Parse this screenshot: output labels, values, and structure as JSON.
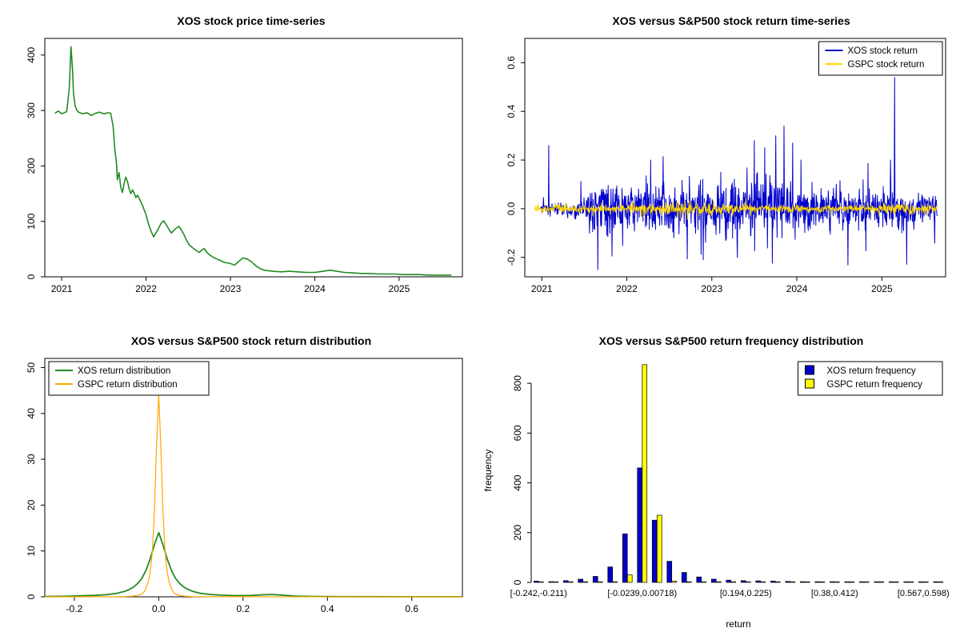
{
  "chart_data": [
    {
      "type": "line",
      "title": "XOS stock price time-series",
      "xlim": [
        2020.8,
        2025.75
      ],
      "ylim": [
        0,
        430
      ],
      "xtick_values": [
        2021,
        2022,
        2023,
        2024,
        2025
      ],
      "xtick_labels": [
        "2021",
        "2022",
        "2023",
        "2024",
        "2025"
      ],
      "ytick_values": [
        0,
        100,
        200,
        300,
        400
      ],
      "ytick_labels": [
        "0",
        "100",
        "200",
        "300",
        "400"
      ],
      "series": [
        {
          "name": "XOS price",
          "color": "#228B22",
          "width": 1.6,
          "points": [
            [
              2020.92,
              295
            ],
            [
              2020.96,
              299
            ],
            [
              2021.0,
              294
            ],
            [
              2021.03,
              296
            ],
            [
              2021.06,
              298
            ],
            [
              2021.09,
              340
            ],
            [
              2021.11,
              415
            ],
            [
              2021.12,
              395
            ],
            [
              2021.13,
              370
            ],
            [
              2021.14,
              330
            ],
            [
              2021.16,
              308
            ],
            [
              2021.18,
              300
            ],
            [
              2021.2,
              297
            ],
            [
              2021.25,
              294
            ],
            [
              2021.3,
              296
            ],
            [
              2021.35,
              291
            ],
            [
              2021.4,
              295
            ],
            [
              2021.45,
              297
            ],
            [
              2021.5,
              294
            ],
            [
              2021.55,
              296
            ],
            [
              2021.58,
              295
            ],
            [
              2021.61,
              272
            ],
            [
              2021.63,
              230
            ],
            [
              2021.65,
              205
            ],
            [
              2021.66,
              175
            ],
            [
              2021.68,
              188
            ],
            [
              2021.7,
              162
            ],
            [
              2021.72,
              152
            ],
            [
              2021.74,
              168
            ],
            [
              2021.76,
              180
            ],
            [
              2021.78,
              172
            ],
            [
              2021.8,
              158
            ],
            [
              2021.82,
              150
            ],
            [
              2021.84,
              157
            ],
            [
              2021.86,
              150
            ],
            [
              2021.88,
              143
            ],
            [
              2021.9,
              147
            ],
            [
              2021.93,
              138
            ],
            [
              2021.96,
              128
            ],
            [
              2022.0,
              112
            ],
            [
              2022.03,
              95
            ],
            [
              2022.06,
              82
            ],
            [
              2022.09,
              72
            ],
            [
              2022.12,
              80
            ],
            [
              2022.15,
              88
            ],
            [
              2022.18,
              97
            ],
            [
              2022.21,
              101
            ],
            [
              2022.24,
              94
            ],
            [
              2022.27,
              86
            ],
            [
              2022.3,
              79
            ],
            [
              2022.33,
              84
            ],
            [
              2022.36,
              88
            ],
            [
              2022.39,
              91
            ],
            [
              2022.42,
              84
            ],
            [
              2022.45,
              76
            ],
            [
              2022.48,
              66
            ],
            [
              2022.51,
              58
            ],
            [
              2022.54,
              54
            ],
            [
              2022.57,
              50
            ],
            [
              2022.6,
              47
            ],
            [
              2022.63,
              44
            ],
            [
              2022.66,
              48
            ],
            [
              2022.69,
              51
            ],
            [
              2022.72,
              44
            ],
            [
              2022.75,
              40
            ],
            [
              2022.78,
              37
            ],
            [
              2022.81,
              34
            ],
            [
              2022.84,
              32
            ],
            [
              2022.87,
              30
            ],
            [
              2022.9,
              28
            ],
            [
              2022.93,
              26
            ],
            [
              2023.0,
              24
            ],
            [
              2023.05,
              21
            ],
            [
              2023.1,
              28
            ],
            [
              2023.15,
              34
            ],
            [
              2023.2,
              32
            ],
            [
              2023.25,
              27
            ],
            [
              2023.3,
              20
            ],
            [
              2023.35,
              15
            ],
            [
              2023.4,
              12
            ],
            [
              2023.45,
              11
            ],
            [
              2023.5,
              10
            ],
            [
              2023.6,
              9
            ],
            [
              2023.7,
              10
            ],
            [
              2023.8,
              9
            ],
            [
              2023.9,
              8
            ],
            [
              2024.0,
              8
            ],
            [
              2024.1,
              10
            ],
            [
              2024.18,
              12
            ],
            [
              2024.26,
              10
            ],
            [
              2024.35,
              8
            ],
            [
              2024.45,
              7
            ],
            [
              2024.55,
              6
            ],
            [
              2024.65,
              6
            ],
            [
              2024.75,
              5
            ],
            [
              2024.85,
              5
            ],
            [
              2024.95,
              5
            ],
            [
              2025.05,
              4
            ],
            [
              2025.15,
              4
            ],
            [
              2025.25,
              4
            ],
            [
              2025.35,
              3
            ],
            [
              2025.45,
              3
            ],
            [
              2025.55,
              3
            ],
            [
              2025.62,
              3
            ]
          ]
        }
      ]
    },
    {
      "type": "noise-line",
      "title": "XOS versus S&P500 stock return time-series",
      "xlim": [
        2020.8,
        2025.75
      ],
      "ylim": [
        -0.28,
        0.7
      ],
      "xtick_values": [
        2021,
        2022,
        2023,
        2024,
        2025
      ],
      "xtick_labels": [
        "2021",
        "2022",
        "2023",
        "2024",
        "2025"
      ],
      "ytick_values": [
        -0.2,
        0.0,
        0.2,
        0.4,
        0.6
      ],
      "ytick_labels": [
        "-0.2",
        "0.0",
        "0.2",
        "0.4",
        "0.6"
      ],
      "legend": {
        "position": "top-right",
        "style": "line",
        "entries": [
          {
            "label": "XOS stock return",
            "color": "#0000cd"
          },
          {
            "label": "GSPC stock return",
            "color": "#ffd700"
          }
        ]
      },
      "series": [
        {
          "name": "XOS stock return",
          "color": "#0000cd",
          "width": 1,
          "seed": 1234,
          "x_start": 2020.98,
          "x_end": 2025.65,
          "n": 1150,
          "heavy_tail": 0.06,
          "tail_mult": 2.6,
          "clamp": [
            -0.255,
            0.36
          ],
          "sd_profile": [
            [
              2020.98,
              0.012
            ],
            [
              2021.5,
              0.015
            ],
            [
              2021.6,
              0.05
            ],
            [
              2022.0,
              0.045
            ],
            [
              2022.5,
              0.05
            ],
            [
              2023.0,
              0.055
            ],
            [
              2023.5,
              0.065
            ],
            [
              2024.0,
              0.055
            ],
            [
              2024.5,
              0.04
            ],
            [
              2025.0,
              0.035
            ],
            [
              2025.65,
              0.03
            ]
          ],
          "spikes": [
            [
              2021.08,
              0.26
            ],
            [
              2021.66,
              -0.25
            ],
            [
              2022.28,
              0.2
            ],
            [
              2022.9,
              -0.21
            ],
            [
              2023.3,
              -0.2
            ],
            [
              2023.5,
              0.28
            ],
            [
              2023.62,
              0.25
            ],
            [
              2023.75,
              0.3
            ],
            [
              2023.85,
              0.34
            ],
            [
              2023.95,
              0.27
            ],
            [
              2024.05,
              0.2
            ],
            [
              2025.1,
              0.2
            ],
            [
              2025.15,
              0.54
            ]
          ]
        },
        {
          "name": "GSPC stock return",
          "color": "#ffd700",
          "width": 0.9,
          "seed": 777,
          "x_start": 2020.92,
          "x_end": 2025.65,
          "n": 1165,
          "heavy_tail": 0.03,
          "tail_mult": 1.8,
          "clamp": [
            -0.065,
            0.065
          ],
          "sd_profile": [
            [
              2020.92,
              0.008
            ],
            [
              2021.8,
              0.009
            ],
            [
              2022.3,
              0.013
            ],
            [
              2022.9,
              0.014
            ],
            [
              2023.3,
              0.009
            ],
            [
              2024.0,
              0.008
            ],
            [
              2024.6,
              0.007
            ],
            [
              2025.1,
              0.013
            ],
            [
              2025.65,
              0.009
            ]
          ],
          "spikes": []
        }
      ]
    },
    {
      "type": "line",
      "title": "XOS versus S&P500 stock return distribution",
      "xlim": [
        -0.27,
        0.72
      ],
      "ylim": [
        0,
        52
      ],
      "xtick_values": [
        -0.2,
        0.0,
        0.2,
        0.4,
        0.6
      ],
      "xtick_labels": [
        "-0.2",
        "0.0",
        "0.2",
        "0.4",
        "0.6"
      ],
      "ytick_values": [
        0,
        10,
        20,
        30,
        40,
        50
      ],
      "ytick_labels": [
        "0",
        "10",
        "20",
        "30",
        "40",
        "50"
      ],
      "legend": {
        "position": "top-left",
        "style": "line",
        "entries": [
          {
            "label": "XOS return distribution",
            "color": "#228B22"
          },
          {
            "label": "GSPC return distribution",
            "color": "#FFA500"
          }
        ]
      },
      "series": [
        {
          "name": "XOS return distribution",
          "color": "#228B22",
          "width": 1.8,
          "points": [
            [
              -0.27,
              0.05
            ],
            [
              -0.22,
              0.12
            ],
            [
              -0.18,
              0.22
            ],
            [
              -0.15,
              0.32
            ],
            [
              -0.12,
              0.5
            ],
            [
              -0.1,
              0.75
            ],
            [
              -0.08,
              1.2
            ],
            [
              -0.07,
              1.6
            ],
            [
              -0.06,
              2.1
            ],
            [
              -0.05,
              2.9
            ],
            [
              -0.04,
              4.0
            ],
            [
              -0.03,
              5.8
            ],
            [
              -0.02,
              8.3
            ],
            [
              -0.01,
              11.4
            ],
            [
              0,
              14
            ],
            [
              0.01,
              11.4
            ],
            [
              0.02,
              8.3
            ],
            [
              0.03,
              5.8
            ],
            [
              0.04,
              4.0
            ],
            [
              0.05,
              2.9
            ],
            [
              0.06,
              2.1
            ],
            [
              0.07,
              1.6
            ],
            [
              0.08,
              1.2
            ],
            [
              0.1,
              0.75
            ],
            [
              0.12,
              0.52
            ],
            [
              0.15,
              0.35
            ],
            [
              0.18,
              0.27
            ],
            [
              0.22,
              0.3
            ],
            [
              0.25,
              0.45
            ],
            [
              0.27,
              0.5
            ],
            [
              0.29,
              0.38
            ],
            [
              0.32,
              0.18
            ],
            [
              0.36,
              0.08
            ],
            [
              0.4,
              0.05
            ],
            [
              0.45,
              0.04
            ],
            [
              0.5,
              0.03
            ],
            [
              0.6,
              0.02
            ],
            [
              0.72,
              0.02
            ]
          ]
        },
        {
          "name": "GSPC return distribution",
          "color": "#FFA500",
          "width": 1.2,
          "points": [
            [
              -0.27,
              0.0
            ],
            [
              -0.12,
              0.02
            ],
            [
              -0.08,
              0.06
            ],
            [
              -0.06,
              0.15
            ],
            [
              -0.05,
              0.3
            ],
            [
              -0.04,
              0.6
            ],
            [
              -0.035,
              1.0
            ],
            [
              -0.03,
              1.8
            ],
            [
              -0.025,
              3.2
            ],
            [
              -0.02,
              5.5
            ],
            [
              -0.015,
              10
            ],
            [
              -0.01,
              19
            ],
            [
              -0.005,
              33
            ],
            [
              0,
              44
            ],
            [
              0.005,
              33
            ],
            [
              0.01,
              19
            ],
            [
              0.015,
              10
            ],
            [
              0.02,
              5.5
            ],
            [
              0.025,
              3.2
            ],
            [
              0.03,
              1.8
            ],
            [
              0.035,
              1.0
            ],
            [
              0.04,
              0.6
            ],
            [
              0.05,
              0.3
            ],
            [
              0.06,
              0.15
            ],
            [
              0.08,
              0.06
            ],
            [
              0.12,
              0.02
            ],
            [
              0.72,
              0.0
            ]
          ]
        }
      ]
    },
    {
      "type": "grouped-bar",
      "title": "XOS versus S&P500 return frequency distribution",
      "xlabel": "return",
      "ylabel": "frequency",
      "ylim": [
        0,
        900
      ],
      "ytick_values": [
        0,
        200,
        400,
        600,
        800
      ],
      "ytick_labels": [
        "0",
        "200",
        "400",
        "600",
        "800"
      ],
      "n_bins": 28,
      "tick_bins": [
        0,
        7,
        14,
        20,
        26
      ],
      "tick_labels": [
        "[-0.242,-0.211)",
        "[-0.0239,0.00718)",
        "[0.194,0.225)",
        "[0.38,0.412)",
        "[0.567,0.598)"
      ],
      "legend": {
        "position": "top-right",
        "style": "square",
        "entries": [
          {
            "label": "XOS return frequency",
            "color": "#0000cd"
          },
          {
            "label": "GSPC return frequency",
            "color": "#FFFF00"
          }
        ]
      },
      "series": [
        {
          "name": "XOS return frequency",
          "color": "#0000cd",
          "values": [
            5,
            3,
            7,
            13,
            24,
            62,
            195,
            460,
            250,
            85,
            40,
            22,
            13,
            9,
            7,
            6,
            5,
            4,
            3,
            3,
            3,
            2,
            2,
            2,
            2,
            2,
            2,
            2
          ]
        },
        {
          "name": "GSPC return frequency",
          "color": "#FFFF00",
          "values": [
            1,
            0,
            0,
            0,
            1,
            3,
            30,
            875,
            270,
            5,
            1,
            0,
            0,
            0,
            0,
            0,
            0,
            0,
            0,
            0,
            0,
            0,
            0,
            0,
            0,
            0,
            0,
            0
          ]
        }
      ]
    }
  ]
}
